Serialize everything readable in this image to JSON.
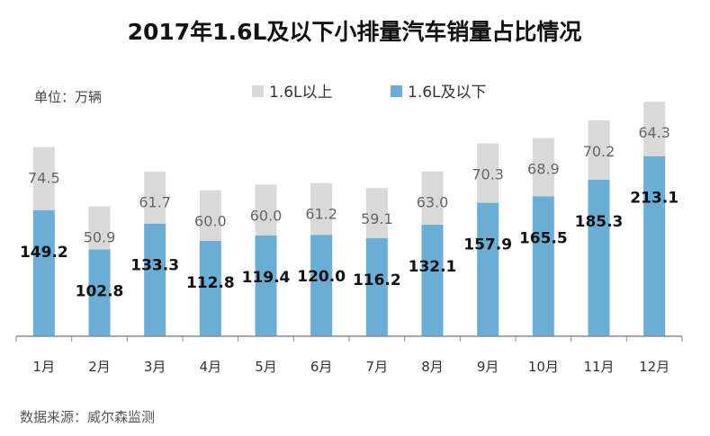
{
  "header": {
    "title": "2017年1.6L及以下小排量汽车销量占比情况",
    "unit": "单位：万辆"
  },
  "footer": {
    "source": "数据来源：威尔森监测"
  },
  "chart_data": {
    "type": "bar",
    "stacked": true,
    "categories": [
      "1月",
      "2月",
      "3月",
      "4月",
      "5月",
      "6月",
      "7月",
      "8月",
      "9月",
      "10月",
      "11月",
      "12月"
    ],
    "series": [
      {
        "name": "1.6L及以下",
        "color": "#6aaed6",
        "values": [
          149.2,
          102.8,
          133.3,
          112.8,
          119.4,
          120.0,
          116.2,
          132.1,
          157.9,
          165.5,
          185.3,
          213.1
        ],
        "labels": [
          "149.2",
          "102.8",
          "133.3",
          "112.8",
          "119.4",
          "120.0",
          "116.2",
          "132.1",
          "157.9",
          "165.5",
          "185.3",
          "213.1"
        ]
      },
      {
        "name": "1.6L以上",
        "color": "#d9d9d9",
        "values": [
          74.5,
          50.9,
          61.7,
          60.0,
          60.0,
          61.2,
          59.1,
          63.0,
          70.3,
          68.9,
          70.2,
          64.3
        ],
        "labels": [
          "74.5",
          "50.9",
          "61.7",
          "60.0",
          "60.0",
          "61.2",
          "59.1",
          "63.0",
          "70.3",
          "68.9",
          "70.2",
          "64.3"
        ]
      }
    ],
    "legend": {
      "position": "top",
      "order": [
        "1.6L以上",
        "1.6L及以下"
      ]
    },
    "grid": false,
    "ylim": [
      0,
      290
    ]
  }
}
